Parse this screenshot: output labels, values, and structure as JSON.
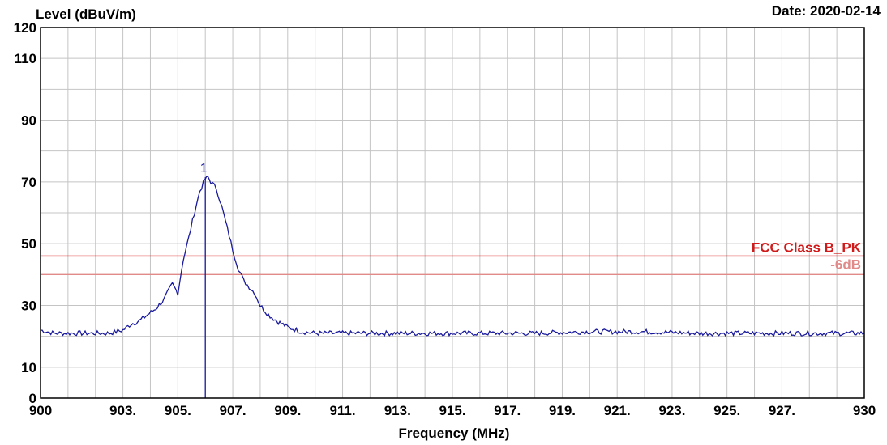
{
  "header": {
    "y_axis_label": "Level (dBuV/m)",
    "date": "Date: 2020-02-14"
  },
  "chart_data": {
    "type": "line",
    "title": "",
    "xlabel": "Frequency (MHz)",
    "ylabel": "Level (dBuV/m)",
    "xlim": [
      900,
      930
    ],
    "ylim": [
      0,
      120
    ],
    "grid": true,
    "y_ticks": [
      "0",
      "10",
      "30",
      "50",
      "70",
      "90",
      "110",
      "120"
    ],
    "y_tick_values": [
      0,
      10,
      30,
      50,
      70,
      90,
      110,
      120
    ],
    "x_ticks": [
      "900",
      "903.",
      "905.",
      "907.",
      "909.",
      "911.",
      "913.",
      "915.",
      "917.",
      "919.",
      "921.",
      "923.",
      "925.",
      "927.",
      "930"
    ],
    "x_tick_values": [
      900,
      903,
      905,
      907,
      909,
      911,
      913,
      915,
      917,
      919,
      921,
      923,
      925,
      927,
      930
    ],
    "limit_lines": [
      {
        "name": "FCC Class B_PK",
        "value": 46,
        "color": "#d11a1a"
      },
      {
        "name": "-6dB",
        "value": 40,
        "color": "#e08a8a"
      }
    ],
    "series": [
      {
        "color": "#1a1a9c",
        "x": [
          900,
          900.5,
          901,
          901.5,
          902,
          902.5,
          903,
          903.3,
          903.6,
          903.9,
          904.2,
          904.5,
          904.8,
          905.0,
          905.2,
          905.4,
          905.6,
          905.8,
          906.0,
          906.1,
          906.2,
          906.4,
          906.6,
          906.8,
          907.0,
          907.2,
          907.4,
          907.6,
          907.8,
          908.0,
          908.3,
          908.6,
          909.0,
          909.5,
          910,
          912,
          914,
          916,
          918,
          920,
          922,
          924,
          926,
          928,
          930
        ],
        "y": [
          22,
          21,
          21,
          21,
          21,
          21,
          22,
          24,
          25,
          27,
          29,
          32,
          37,
          34,
          45,
          52,
          60,
          67,
          71,
          71.5,
          70,
          68,
          62,
          55,
          48,
          42,
          38,
          36,
          34,
          30,
          27,
          25,
          23,
          21.5,
          21,
          21,
          21,
          21,
          21,
          21.5,
          21.5,
          21,
          21,
          21,
          21
        ]
      }
    ],
    "markers": [
      {
        "label": "1",
        "x": 906.0,
        "y": 71.5
      }
    ]
  }
}
